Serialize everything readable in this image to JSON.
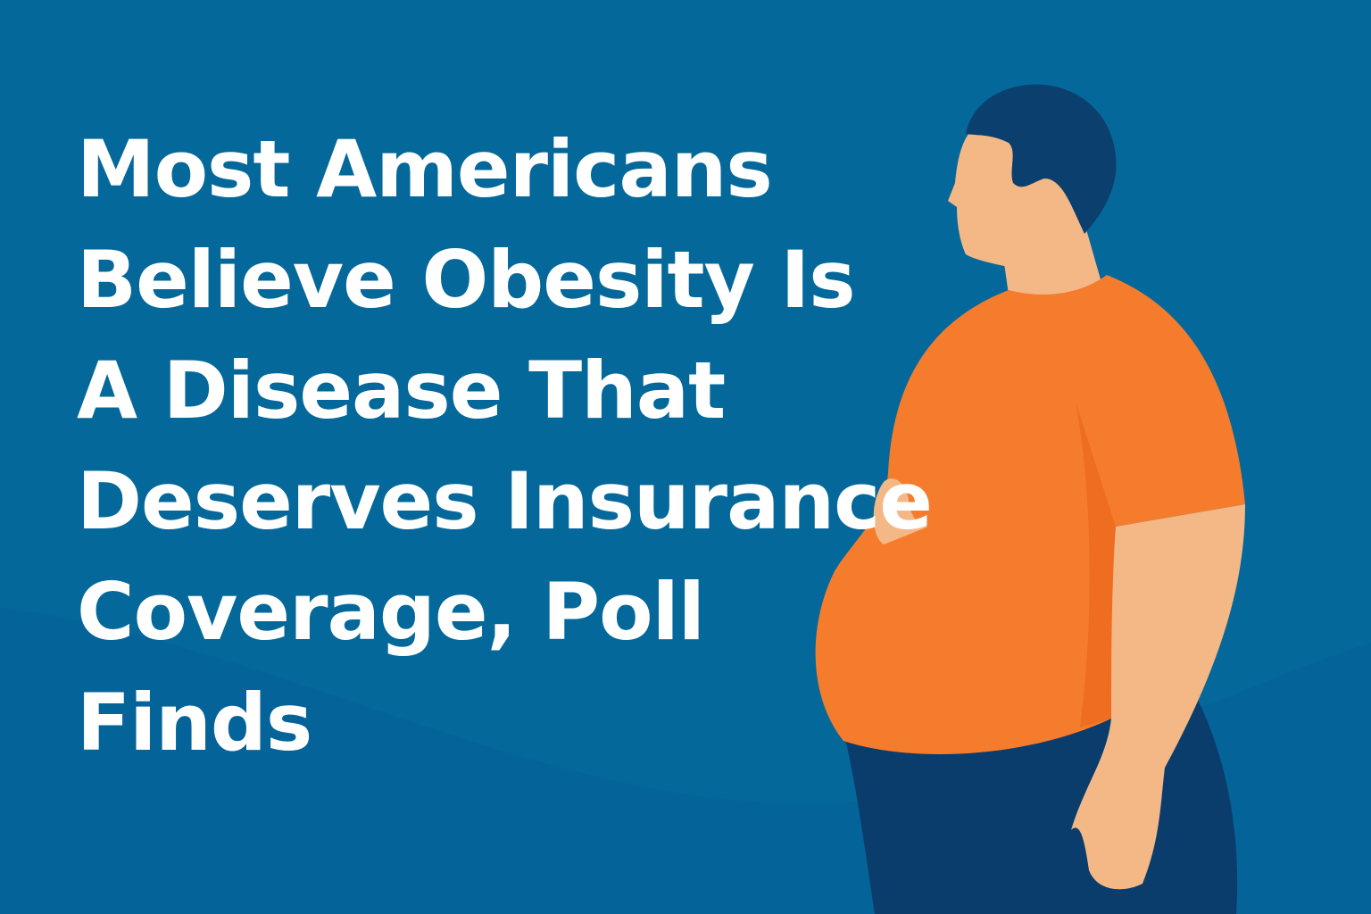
{
  "headline": {
    "lines": [
      "Most Americans",
      "Believe Obesity Is",
      "A Disease That",
      "Deserves Insurance",
      "Coverage, Poll",
      "Finds"
    ]
  },
  "colors": {
    "background": "#05689a",
    "text": "#ffffff",
    "shirt": "#f57c2c",
    "skin": "#f4b886",
    "hair": "#0b3f6e",
    "pants": "#0b3d6c"
  },
  "illustration": {
    "subject": "person-icon"
  }
}
